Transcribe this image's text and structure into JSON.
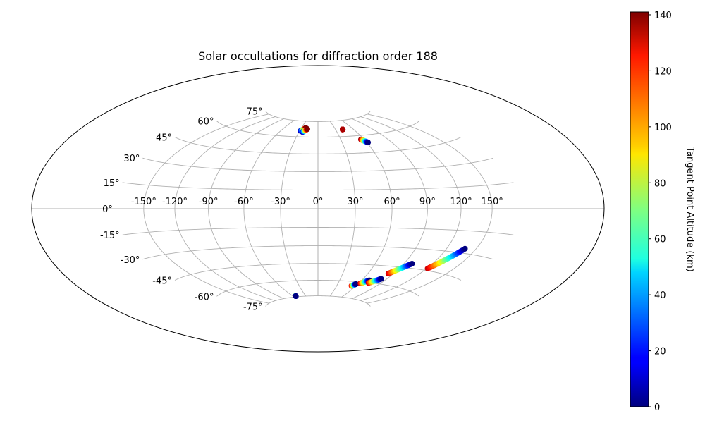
{
  "chart_data": {
    "type": "scatter",
    "projection": "hammer",
    "title": "Solar occultations for diffraction order 188",
    "xlabel": "",
    "ylabel": "",
    "grid": true,
    "lon_ticks": [
      -150,
      -120,
      -90,
      -60,
      -30,
      0,
      30,
      60,
      90,
      120,
      150
    ],
    "lon_tick_labels": [
      "-150°",
      "-120°",
      "-90°",
      "-60°",
      "-30°",
      "0°",
      "30°",
      "60°",
      "90°",
      "120°",
      "150°"
    ],
    "lat_ticks": [
      -75,
      -60,
      -45,
      -30,
      -15,
      0,
      15,
      30,
      45,
      60,
      75
    ],
    "lat_tick_labels": [
      "-75°",
      "-60°",
      "-45°",
      "-30°",
      "-15°",
      "0°",
      "15°",
      "30°",
      "45°",
      "60°",
      "75°"
    ],
    "colorbar": {
      "label": "Tangent Point Altitude (km)",
      "range": [
        0,
        141
      ],
      "ticks": [
        0,
        20,
        40,
        60,
        80,
        100,
        120,
        140
      ],
      "tick_labels": [
        "0",
        "20",
        "40",
        "60",
        "80",
        "100",
        "120",
        "140"
      ],
      "colormap": "jet"
    },
    "tracks": [
      {
        "lon_start": -28.5,
        "lat_start": 65.5,
        "lon_end": -22.0,
        "lat_end": 68.5,
        "alt_start": 0,
        "alt_end": 141
      },
      {
        "lon_start": -24.5,
        "lat_start": 64.6,
        "lon_end": -18.5,
        "lat_end": 67.5,
        "alt_start": 0,
        "alt_end": 141
      },
      {
        "lon_start": 42.0,
        "lat_start": 66.5,
        "lon_end": 42.0,
        "lat_end": 66.5,
        "alt_start": 135,
        "alt_end": 135
      },
      {
        "lon_start": 56.0,
        "lat_start": 56.5,
        "lon_end": 61.5,
        "lat_end": 53.5,
        "alt_start": 141,
        "alt_end": 0
      },
      {
        "lon_start": -53.5,
        "lat_start": -74.0,
        "lon_end": -53.5,
        "lat_end": -74.3,
        "alt_start": 100,
        "alt_end": 0
      },
      {
        "lon_start": 53.0,
        "lat_start": -64.0,
        "lon_end": 57.0,
        "lat_end": -62.2,
        "alt_start": 130,
        "alt_end": 0
      },
      {
        "lon_start": 62.5,
        "lat_start": -61.3,
        "lon_end": 70.0,
        "lat_end": -58.0,
        "alt_start": 130,
        "alt_end": 0
      },
      {
        "lon_start": 73.0,
        "lat_start": -60.2,
        "lon_end": 83.0,
        "lat_end": -55.8,
        "alt_start": 130,
        "alt_end": 0
      },
      {
        "lon_start": 84.0,
        "lat_start": -51.0,
        "lon_end": 98.5,
        "lat_end": -41.5,
        "alt_start": 130,
        "alt_end": 0
      },
      {
        "lon_start": 121.0,
        "lat_start": -43.5,
        "lon_end": 138.5,
        "lat_end": -27.0,
        "alt_start": 130,
        "alt_end": 0
      }
    ]
  }
}
